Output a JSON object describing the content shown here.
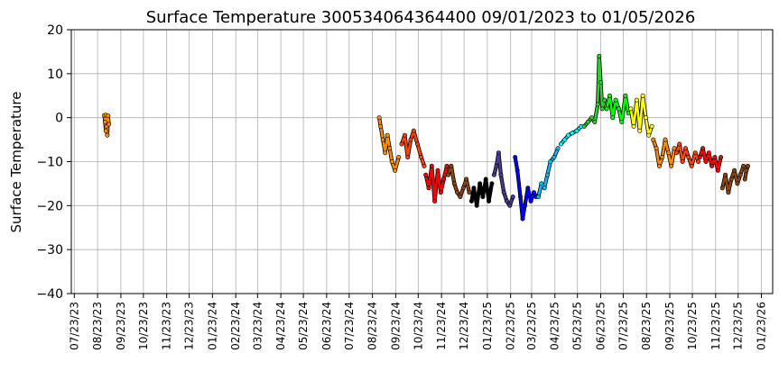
{
  "chart_data": {
    "type": "scatter",
    "title": "Surface Temperature 300534064364400  09/01/2023 to 01/05/2026",
    "ylabel": "Surface Temperature",
    "xlabel": "",
    "grid": true,
    "ylim": [
      -40,
      20
    ],
    "yticks": [
      20,
      10,
      0,
      -10,
      -20,
      -30,
      -40
    ],
    "ytick_labels": [
      "20",
      "10",
      "0",
      "−10",
      "−20",
      "−30",
      "−40"
    ],
    "xlim": [
      "2023-07-19",
      "2026-02-07"
    ],
    "xticks": [
      "2023-07-23",
      "2023-08-23",
      "2023-09-23",
      "2023-10-23",
      "2023-11-23",
      "2023-12-23",
      "2024-01-23",
      "2024-02-23",
      "2024-03-23",
      "2024-04-23",
      "2024-05-23",
      "2024-06-23",
      "2024-07-23",
      "2024-08-23",
      "2024-09-23",
      "2024-10-23",
      "2024-11-23",
      "2024-12-23",
      "2025-01-23",
      "2025-02-23",
      "2025-03-23",
      "2025-04-23",
      "2025-05-23",
      "2025-06-23",
      "2025-07-23",
      "2025-08-23",
      "2025-09-23",
      "2025-10-23",
      "2025-11-23",
      "2025-12-23",
      "2026-01-23"
    ],
    "xtick_labels": [
      "07/23/23",
      "08/23/23",
      "09/23/23",
      "10/23/23",
      "11/23/23",
      "12/23/23",
      "01/23/24",
      "02/23/24",
      "03/23/24",
      "04/23/24",
      "05/23/24",
      "06/23/24",
      "07/23/24",
      "08/23/24",
      "09/23/24",
      "10/23/24",
      "11/23/24",
      "12/23/24",
      "01/23/25",
      "02/23/25",
      "03/23/25",
      "04/23/25",
      "05/23/25",
      "06/23/25",
      "07/23/25",
      "08/23/25",
      "09/23/25",
      "10/23/25",
      "11/23/25",
      "12/23/25",
      "01/23/26"
    ],
    "series": [
      {
        "color": "#ff8c00",
        "points": [
          [
            "2023-09-01",
            0.5
          ],
          [
            "2023-09-02",
            -1
          ],
          [
            "2023-09-03",
            -3
          ],
          [
            "2023-09-03",
            0.6
          ],
          [
            "2023-09-04",
            -2
          ],
          [
            "2023-09-05",
            -4
          ],
          [
            "2023-09-06",
            0.4
          ],
          [
            "2023-09-07",
            -1.5
          ]
        ]
      },
      {
        "color": "#ff8c00",
        "points": [
          [
            "2024-09-01",
            0
          ],
          [
            "2024-09-03",
            -2
          ],
          [
            "2024-09-06",
            -5
          ],
          [
            "2024-09-09",
            -8
          ],
          [
            "2024-09-12",
            -4
          ],
          [
            "2024-09-15",
            -7
          ],
          [
            "2024-09-18",
            -10
          ],
          [
            "2024-09-22",
            -12
          ],
          [
            "2024-09-27",
            -9
          ]
        ]
      },
      {
        "color": "#ff4500",
        "points": [
          [
            "2024-10-01",
            -6
          ],
          [
            "2024-10-05",
            -4
          ],
          [
            "2024-10-09",
            -9
          ],
          [
            "2024-10-13",
            -5
          ],
          [
            "2024-10-17",
            -3
          ],
          [
            "2024-10-22",
            -6
          ],
          [
            "2024-10-27",
            -9
          ],
          [
            "2024-10-31",
            -11
          ]
        ]
      },
      {
        "color": "#ff0000",
        "points": [
          [
            "2024-11-02",
            -13
          ],
          [
            "2024-11-06",
            -16
          ],
          [
            "2024-11-10",
            -11
          ],
          [
            "2024-11-14",
            -19
          ],
          [
            "2024-11-18",
            -12
          ],
          [
            "2024-11-22",
            -17
          ],
          [
            "2024-11-26",
            -14
          ],
          [
            "2024-11-30",
            -11
          ]
        ]
      },
      {
        "color": "#8b4513",
        "points": [
          [
            "2024-12-02",
            -13
          ],
          [
            "2024-12-06",
            -11
          ],
          [
            "2024-12-10",
            -15
          ],
          [
            "2024-12-14",
            -17
          ],
          [
            "2024-12-18",
            -18
          ],
          [
            "2024-12-22",
            -16
          ],
          [
            "2024-12-26",
            -14
          ],
          [
            "2024-12-30",
            -17
          ]
        ]
      },
      {
        "color": "#000000",
        "points": [
          [
            "2025-01-02",
            -19
          ],
          [
            "2025-01-05",
            -16
          ],
          [
            "2025-01-09",
            -20
          ],
          [
            "2025-01-13",
            -15
          ],
          [
            "2025-01-17",
            -18
          ],
          [
            "2025-01-21",
            -14
          ],
          [
            "2025-01-25",
            -19
          ],
          [
            "2025-01-29",
            -15
          ]
        ]
      },
      {
        "color": "#483d8b",
        "points": [
          [
            "2025-02-01",
            -13
          ],
          [
            "2025-02-04",
            -11
          ],
          [
            "2025-02-07",
            -8
          ],
          [
            "2025-02-10",
            -13
          ],
          [
            "2025-02-14",
            -17
          ],
          [
            "2025-02-18",
            -19
          ],
          [
            "2025-02-22",
            -20
          ],
          [
            "2025-02-26",
            -18
          ]
        ]
      },
      {
        "color": "#0000ff",
        "points": [
          [
            "2025-03-01",
            -9
          ],
          [
            "2025-03-04",
            -12
          ],
          [
            "2025-03-08",
            -18
          ],
          [
            "2025-03-11",
            -23
          ],
          [
            "2025-03-14",
            -20
          ],
          [
            "2025-03-18",
            -16
          ],
          [
            "2025-03-22",
            -19
          ],
          [
            "2025-03-26",
            -17
          ],
          [
            "2025-03-29",
            -18
          ]
        ]
      },
      {
        "color": "#00bfff",
        "points": [
          [
            "2025-04-01",
            -18
          ],
          [
            "2025-04-05",
            -15
          ],
          [
            "2025-04-09",
            -16
          ],
          [
            "2025-04-13",
            -13
          ],
          [
            "2025-04-17",
            -10
          ],
          [
            "2025-04-22",
            -9
          ],
          [
            "2025-04-27",
            -7
          ]
        ]
      },
      {
        "color": "#00ffff",
        "points": [
          [
            "2025-05-01",
            -6
          ],
          [
            "2025-05-06",
            -5
          ],
          [
            "2025-05-11",
            -4
          ],
          [
            "2025-05-16",
            -3.5
          ],
          [
            "2025-05-22",
            -3
          ],
          [
            "2025-05-28",
            -2
          ]
        ]
      },
      {
        "color": "#32cd32",
        "points": [
          [
            "2025-06-01",
            -2
          ],
          [
            "2025-06-06",
            -1
          ],
          [
            "2025-06-11",
            0
          ],
          [
            "2025-06-15",
            -1
          ],
          [
            "2025-06-19",
            3
          ],
          [
            "2025-06-21",
            14
          ],
          [
            "2025-06-23",
            8
          ],
          [
            "2025-06-25",
            2
          ],
          [
            "2025-06-28",
            4
          ]
        ]
      },
      {
        "color": "#00ff00",
        "points": [
          [
            "2025-07-01",
            2
          ],
          [
            "2025-07-05",
            5
          ],
          [
            "2025-07-09",
            0
          ],
          [
            "2025-07-13",
            4
          ],
          [
            "2025-07-17",
            2
          ],
          [
            "2025-07-21",
            -1
          ],
          [
            "2025-07-26",
            5
          ],
          [
            "2025-07-30",
            1
          ]
        ]
      },
      {
        "color": "#ffff00",
        "points": [
          [
            "2025-08-02",
            2
          ],
          [
            "2025-08-06",
            -2
          ],
          [
            "2025-08-10",
            4
          ],
          [
            "2025-08-14",
            -3
          ],
          [
            "2025-08-18",
            5
          ],
          [
            "2025-08-22",
            0
          ],
          [
            "2025-08-26",
            -4
          ],
          [
            "2025-08-30",
            -2
          ]
        ]
      },
      {
        "color": "#ff8c00",
        "points": [
          [
            "2025-09-01",
            -5
          ],
          [
            "2025-09-05",
            -7
          ],
          [
            "2025-09-09",
            -11
          ],
          [
            "2025-09-13",
            -9
          ],
          [
            "2025-09-17",
            -5
          ],
          [
            "2025-09-21",
            -8
          ],
          [
            "2025-09-25",
            -11
          ],
          [
            "2025-09-29",
            -7
          ]
        ]
      },
      {
        "color": "#ff4500",
        "points": [
          [
            "2025-10-02",
            -8
          ],
          [
            "2025-10-06",
            -6
          ],
          [
            "2025-10-10",
            -10
          ],
          [
            "2025-10-14",
            -7
          ],
          [
            "2025-10-18",
            -9
          ],
          [
            "2025-10-22",
            -11
          ],
          [
            "2025-10-27",
            -8
          ],
          [
            "2025-10-31",
            -10
          ]
        ]
      },
      {
        "color": "#ff0000",
        "points": [
          [
            "2025-11-02",
            -9
          ],
          [
            "2025-11-06",
            -7
          ],
          [
            "2025-11-10",
            -10
          ],
          [
            "2025-11-14",
            -8
          ],
          [
            "2025-11-18",
            -11
          ],
          [
            "2025-11-22",
            -9
          ],
          [
            "2025-11-26",
            -12
          ],
          [
            "2025-11-30",
            -9
          ]
        ]
      },
      {
        "color": "#8b4513",
        "points": [
          [
            "2025-12-02",
            -16
          ],
          [
            "2025-12-06",
            -13
          ],
          [
            "2025-12-10",
            -17
          ],
          [
            "2025-12-14",
            -14
          ],
          [
            "2025-12-18",
            -12
          ],
          [
            "2025-12-22",
            -15
          ],
          [
            "2025-12-26",
            -13
          ],
          [
            "2025-12-30",
            -11
          ]
        ]
      },
      {
        "color": "#8b4513",
        "points": [
          [
            "2026-01-01",
            -14
          ],
          [
            "2026-01-03",
            -12
          ],
          [
            "2026-01-05",
            -11
          ]
        ]
      }
    ]
  }
}
